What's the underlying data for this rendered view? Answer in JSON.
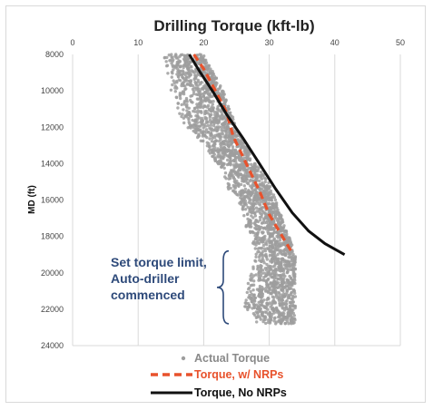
{
  "chart_data": {
    "type": "scatter",
    "title": "Drilling Torque (kft-lb)",
    "ylabel": "MD (ft)",
    "xlabel": "",
    "xlim": [
      0,
      50
    ],
    "ylim": [
      8000,
      24000
    ],
    "y_inverted": true,
    "x_axis_position": "top",
    "x_ticks": [
      "0",
      "10",
      "20",
      "30",
      "40",
      "50"
    ],
    "y_ticks": [
      "8000",
      "10000",
      "12000",
      "14000",
      "16000",
      "18000",
      "20000",
      "22000",
      "24000"
    ],
    "grid": "vertical",
    "legend_position": "bottom",
    "series": [
      {
        "name": "Actual Torque",
        "kind": "points",
        "color": "#9e9e9e",
        "band": [
          {
            "y": 8000,
            "xmin": 13.5,
            "xmax": 20
          },
          {
            "y": 9000,
            "xmin": 14.5,
            "xmax": 21.5
          },
          {
            "y": 10000,
            "xmin": 15,
            "xmax": 23
          },
          {
            "y": 11000,
            "xmin": 16,
            "xmax": 24
          },
          {
            "y": 12000,
            "xmin": 17,
            "xmax": 25
          },
          {
            "y": 13000,
            "xmin": 20,
            "xmax": 26.5
          },
          {
            "y": 14000,
            "xmin": 22,
            "xmax": 28
          },
          {
            "y": 15000,
            "xmin": 23,
            "xmax": 30
          },
          {
            "y": 16000,
            "xmin": 25,
            "xmax": 31
          },
          {
            "y": 17000,
            "xmin": 26,
            "xmax": 32
          },
          {
            "y": 18000,
            "xmin": 27,
            "xmax": 33
          },
          {
            "y": 19000,
            "xmin": 28,
            "xmax": 34
          },
          {
            "y": 20000,
            "xmin": 27,
            "xmax": 34
          },
          {
            "y": 21000,
            "xmin": 26.5,
            "xmax": 34
          },
          {
            "y": 22000,
            "xmin": 26,
            "xmax": 34
          },
          {
            "y": 22800,
            "xmin": 27.5,
            "xmax": 34
          }
        ]
      },
      {
        "name": "Torque, w/ NRPs",
        "kind": "dashed-line",
        "color": "#e8522c",
        "points": [
          [
            18.5,
            8000
          ],
          [
            20,
            8800
          ],
          [
            21.8,
            10000
          ],
          [
            23.5,
            11200
          ],
          [
            24.5,
            12500
          ],
          [
            26.5,
            14000
          ],
          [
            28.5,
            15500
          ],
          [
            30,
            16800
          ],
          [
            31.5,
            17700
          ],
          [
            33.5,
            18900
          ]
        ]
      },
      {
        "name": "Torque, No NRPs",
        "kind": "line",
        "color": "#111111",
        "points": [
          [
            17.8,
            8000
          ],
          [
            19.5,
            9000
          ],
          [
            21.5,
            10100
          ],
          [
            23.5,
            11300
          ],
          [
            26,
            12600
          ],
          [
            28.5,
            14000
          ],
          [
            31,
            15400
          ],
          [
            33.5,
            16700
          ],
          [
            36,
            17700
          ],
          [
            38.5,
            18400
          ],
          [
            40.5,
            18800
          ],
          [
            41.5,
            19000
          ]
        ]
      }
    ],
    "annotation": {
      "lines": [
        "Set torque limit,",
        "Auto-driller",
        "commenced"
      ],
      "brace_depth_range": [
        18800,
        22800
      ]
    }
  }
}
